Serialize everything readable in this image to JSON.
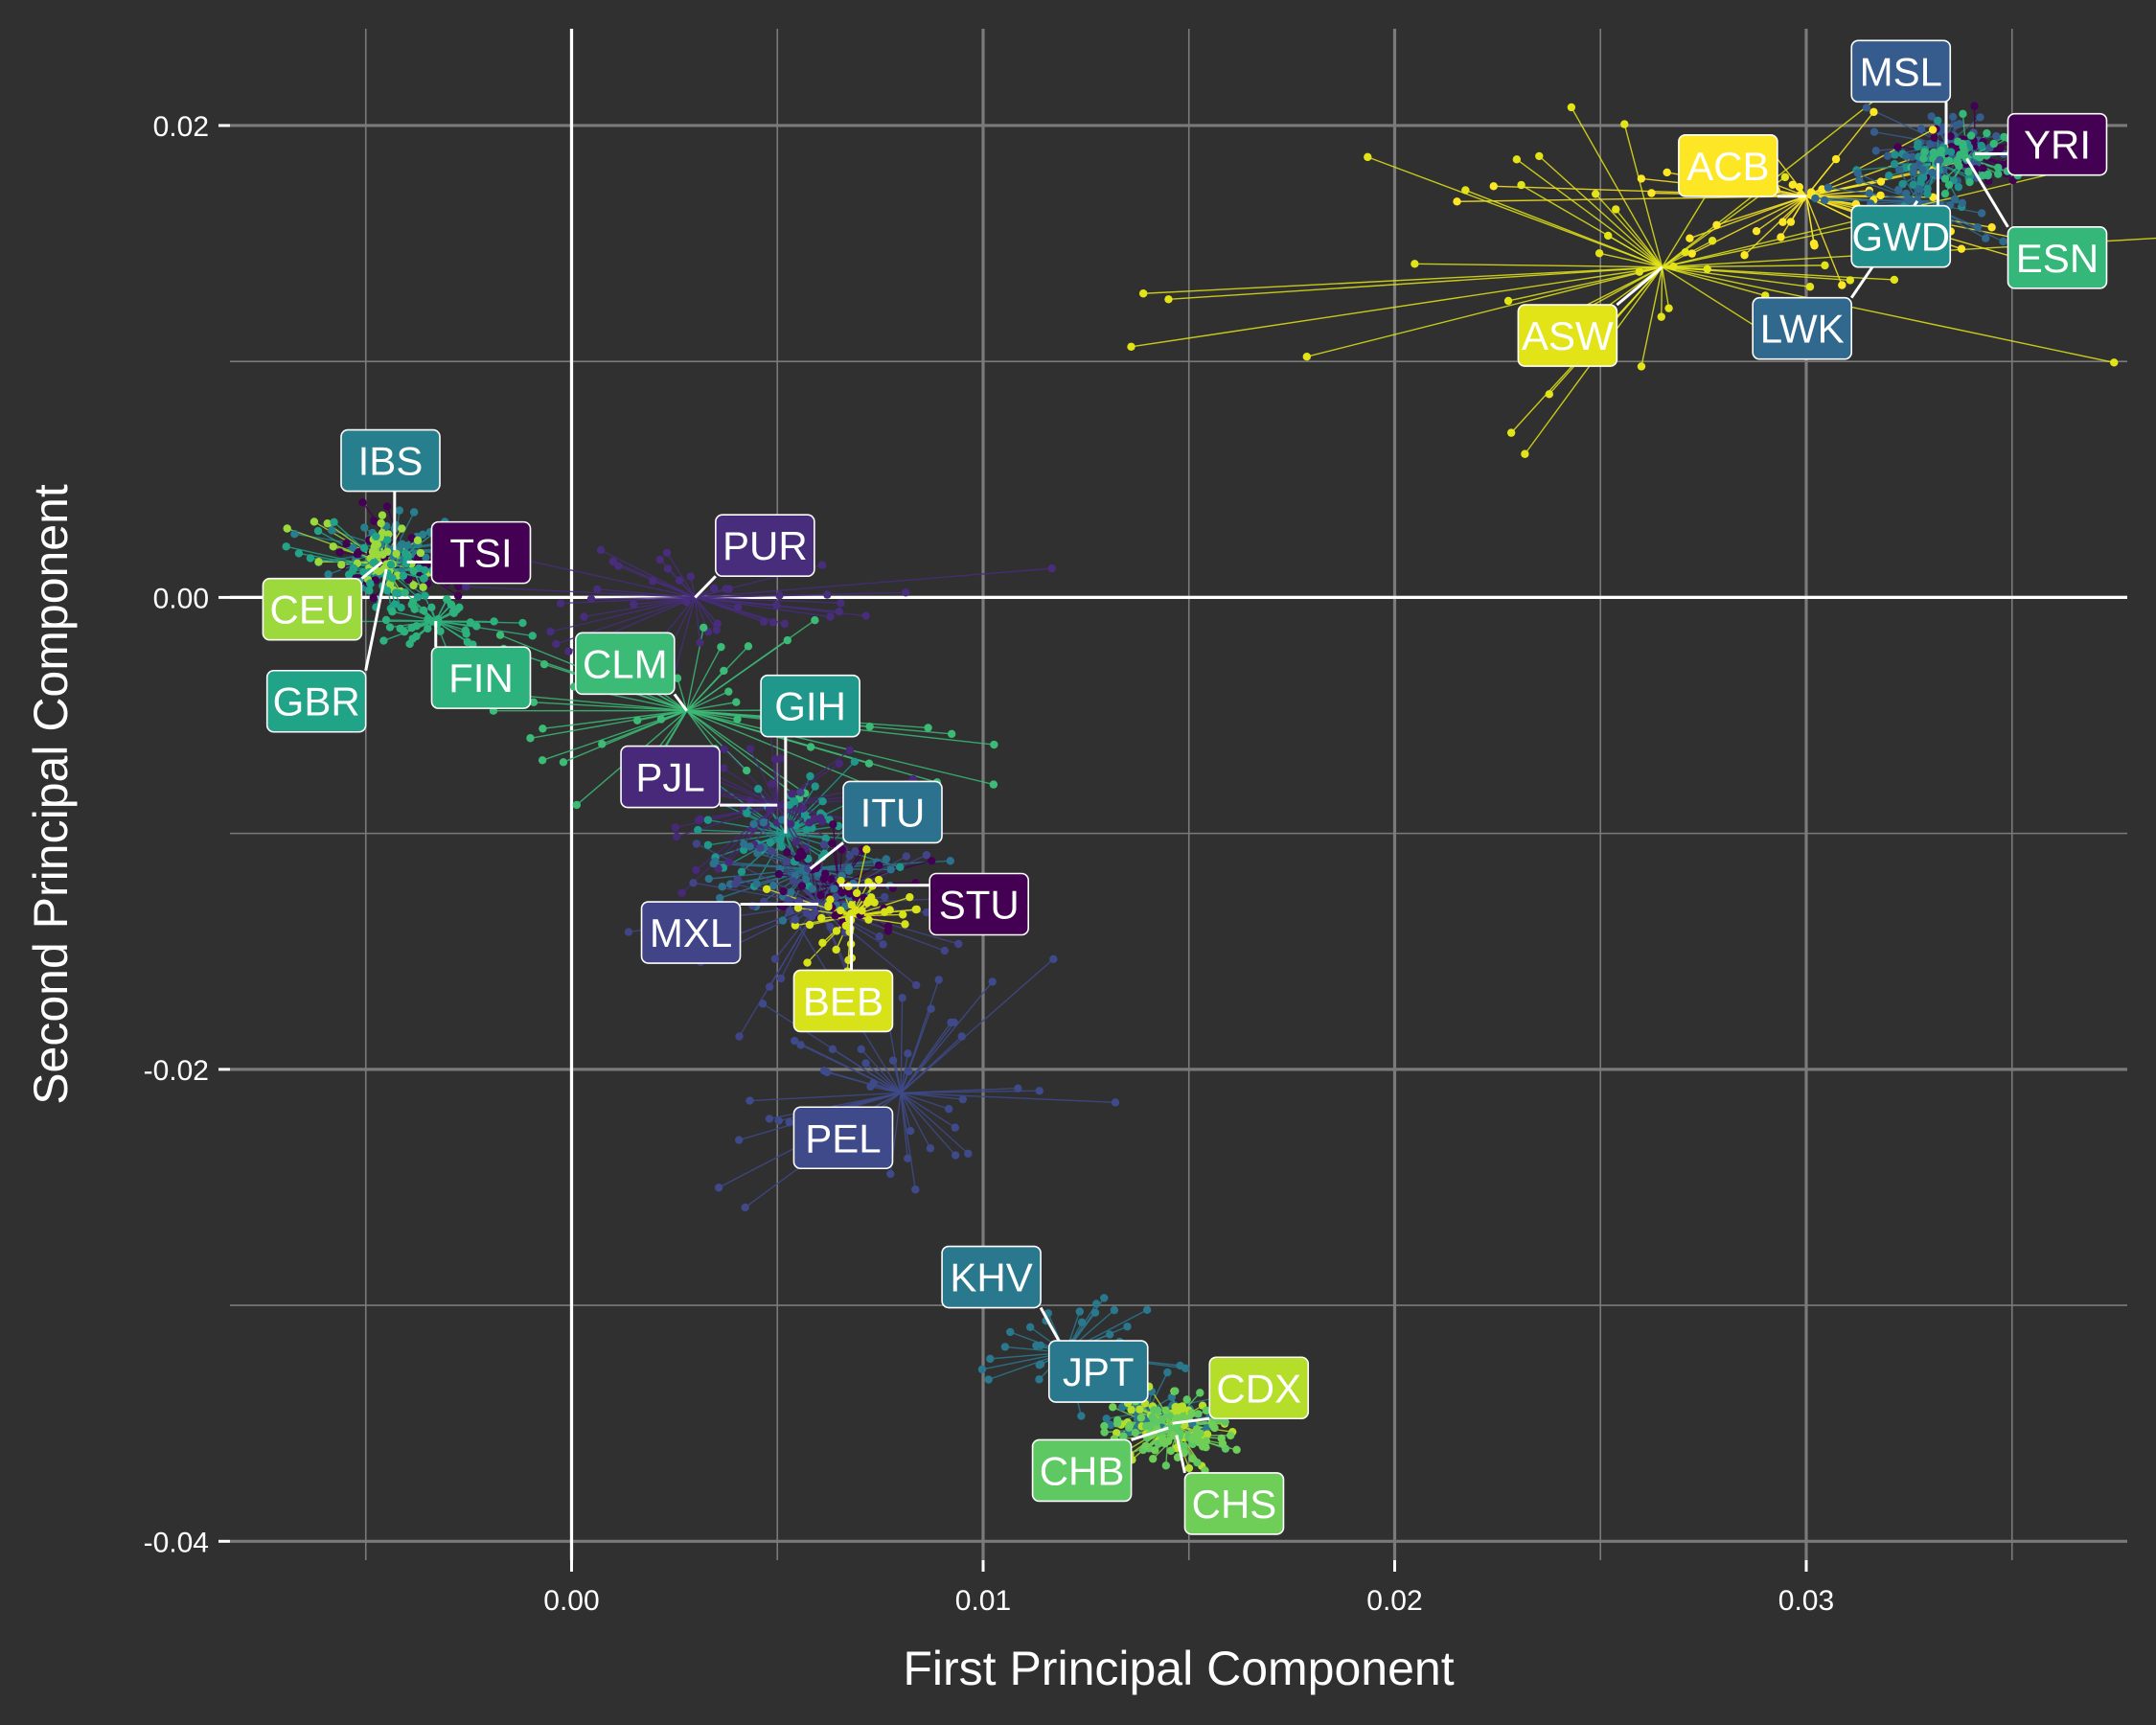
{
  "chart_data": {
    "type": "scatter",
    "title": "",
    "xlabel": "First Principal Component",
    "ylabel": "Second Principal Component",
    "xlim": [
      -0.0083,
      0.0378
    ],
    "ylim": [
      -0.0408,
      0.0241
    ],
    "xticks": [
      0.0,
      0.01,
      0.02,
      0.03
    ],
    "xtick_labels": [
      "0.00",
      "0.01",
      "0.02",
      "0.03"
    ],
    "yticks": [
      0.02,
      0.0,
      -0.02,
      -0.04
    ],
    "ytick_labels": [
      "0.02",
      "0.00",
      "-0.02",
      "-0.04"
    ],
    "grid": true,
    "legend": "none",
    "colors": {
      "background": "#303030",
      "grid_major": "#7a7a7a",
      "zero_line": "#ffffff",
      "text": "#ffffff"
    },
    "series": [
      {
        "name": "MSL",
        "color": "#365c8d",
        "centroid": [
          0.0334,
          0.0192
        ],
        "spread": [
          0.0008,
          0.0008
        ],
        "label_pos": [
          0.0323,
          0.0223
        ]
      },
      {
        "name": "YRI",
        "color": "#440154",
        "centroid": [
          0.0341,
          0.0188
        ],
        "spread": [
          0.0008,
          0.0008
        ],
        "label_pos": [
          0.0361,
          0.0192
        ]
      },
      {
        "name": "ACB",
        "color": "#fde725",
        "centroid": [
          0.03,
          0.017
        ],
        "spread": [
          0.0035,
          0.0018
        ],
        "label_pos": [
          0.0281,
          0.0183
        ]
      },
      {
        "name": "GWD",
        "color": "#21908d",
        "centroid": [
          0.0332,
          0.0184
        ],
        "spread": [
          0.0007,
          0.0007
        ],
        "label_pos": [
          0.0323,
          0.0153
        ]
      },
      {
        "name": "ESN",
        "color": "#35b779",
        "centroid": [
          0.0339,
          0.0186
        ],
        "spread": [
          0.0007,
          0.0007
        ],
        "label_pos": [
          0.0361,
          0.0144
        ]
      },
      {
        "name": "LWK",
        "color": "#31688e",
        "centroid": [
          0.0327,
          0.0168
        ],
        "spread": [
          0.001,
          0.001
        ],
        "label_pos": [
          0.0299,
          0.0114
        ]
      },
      {
        "name": "ASW",
        "color": "#e2e418",
        "centroid": [
          0.0265,
          0.014
        ],
        "spread": [
          0.005,
          0.004
        ],
        "label_pos": [
          0.0242,
          0.0111
        ]
      },
      {
        "name": "IBS",
        "color": "#277f8e",
        "centroid": [
          -0.0043,
          0.002
        ],
        "spread": [
          0.001,
          0.0009
        ],
        "label_pos": [
          -0.0044,
          0.0058
        ]
      },
      {
        "name": "TSI",
        "color": "#440154",
        "centroid": [
          -0.004,
          0.0015
        ],
        "spread": [
          0.001,
          0.0009
        ],
        "label_pos": [
          -0.0022,
          0.0019
        ]
      },
      {
        "name": "CEU",
        "color": "#9bd93c",
        "centroid": [
          -0.0046,
          0.0015
        ],
        "spread": [
          0.0009,
          0.0009
        ],
        "label_pos": [
          -0.0063,
          -0.0005
        ]
      },
      {
        "name": "GBR",
        "color": "#20a386",
        "centroid": [
          -0.0045,
          0.0012
        ],
        "spread": [
          0.0009,
          0.0009
        ],
        "label_pos": [
          -0.0062,
          -0.0044
        ]
      },
      {
        "name": "FIN",
        "color": "#2db27d",
        "centroid": [
          -0.0033,
          -0.001
        ],
        "spread": [
          0.0008,
          0.0007
        ],
        "label_pos": [
          -0.0022,
          -0.0034
        ]
      },
      {
        "name": "PUR",
        "color": "#472d7b",
        "centroid": [
          0.003,
          0.0
        ],
        "spread": [
          0.003,
          0.0012
        ],
        "label_pos": [
          0.0047,
          0.0022
        ]
      },
      {
        "name": "CLM",
        "color": "#3bbb75",
        "centroid": [
          0.0028,
          -0.0048
        ],
        "spread": [
          0.0035,
          0.002
        ],
        "label_pos": [
          0.0013,
          -0.0028
        ]
      },
      {
        "name": "GIH",
        "color": "#1f988b",
        "centroid": [
          0.0052,
          -0.01
        ],
        "spread": [
          0.0012,
          0.0012
        ],
        "label_pos": [
          0.0058,
          -0.0046
        ]
      },
      {
        "name": "PJL",
        "color": "#482878",
        "centroid": [
          0.005,
          -0.0088
        ],
        "spread": [
          0.0015,
          0.0015
        ],
        "label_pos": [
          0.0024,
          -0.0076
        ]
      },
      {
        "name": "ITU",
        "color": "#2c728e",
        "centroid": [
          0.0058,
          -0.0115
        ],
        "spread": [
          0.0012,
          0.0012
        ],
        "label_pos": [
          0.0078,
          -0.0091
        ]
      },
      {
        "name": "STU",
        "color": "#440154",
        "centroid": [
          0.0065,
          -0.0122
        ],
        "spread": [
          0.001,
          0.001
        ],
        "label_pos": [
          0.0099,
          -0.013
        ]
      },
      {
        "name": "MXL",
        "color": "#414487",
        "centroid": [
          0.006,
          -0.013
        ],
        "spread": [
          0.002,
          0.002
        ],
        "label_pos": [
          0.0029,
          -0.0142
        ]
      },
      {
        "name": "BEB",
        "color": "#d8e219",
        "centroid": [
          0.0068,
          -0.0135
        ],
        "spread": [
          0.001,
          0.001
        ],
        "label_pos": [
          0.0066,
          -0.0171
        ]
      },
      {
        "name": "PEL",
        "color": "#3e4a89",
        "centroid": [
          0.008,
          -0.021
        ],
        "spread": [
          0.002,
          0.003
        ],
        "label_pos": [
          0.0066,
          -0.0229
        ]
      },
      {
        "name": "KHV",
        "color": "#2a788e",
        "centroid": [
          0.012,
          -0.032
        ],
        "spread": [
          0.001,
          0.001
        ],
        "label_pos": [
          0.0102,
          -0.0288
        ]
      },
      {
        "name": "JPT",
        "color": "#2a788e",
        "centroid": [
          0.014,
          -0.0345
        ],
        "spread": [
          0.0007,
          0.0007
        ],
        "label_pos": [
          0.0128,
          -0.0328
        ]
      },
      {
        "name": "CDX",
        "color": "#b5de2b",
        "centroid": [
          0.0146,
          -0.035
        ],
        "spread": [
          0.0007,
          0.0007
        ],
        "label_pos": [
          0.0167,
          -0.0335
        ]
      },
      {
        "name": "CHB",
        "color": "#5ec962",
        "centroid": [
          0.0145,
          -0.0352
        ],
        "spread": [
          0.0007,
          0.0007
        ],
        "label_pos": [
          0.0124,
          -0.037
        ]
      },
      {
        "name": "CHS",
        "color": "#6ece58",
        "centroid": [
          0.0147,
          -0.0355
        ],
        "spread": [
          0.0007,
          0.0007
        ],
        "label_pos": [
          0.0161,
          -0.0384
        ]
      }
    ]
  }
}
